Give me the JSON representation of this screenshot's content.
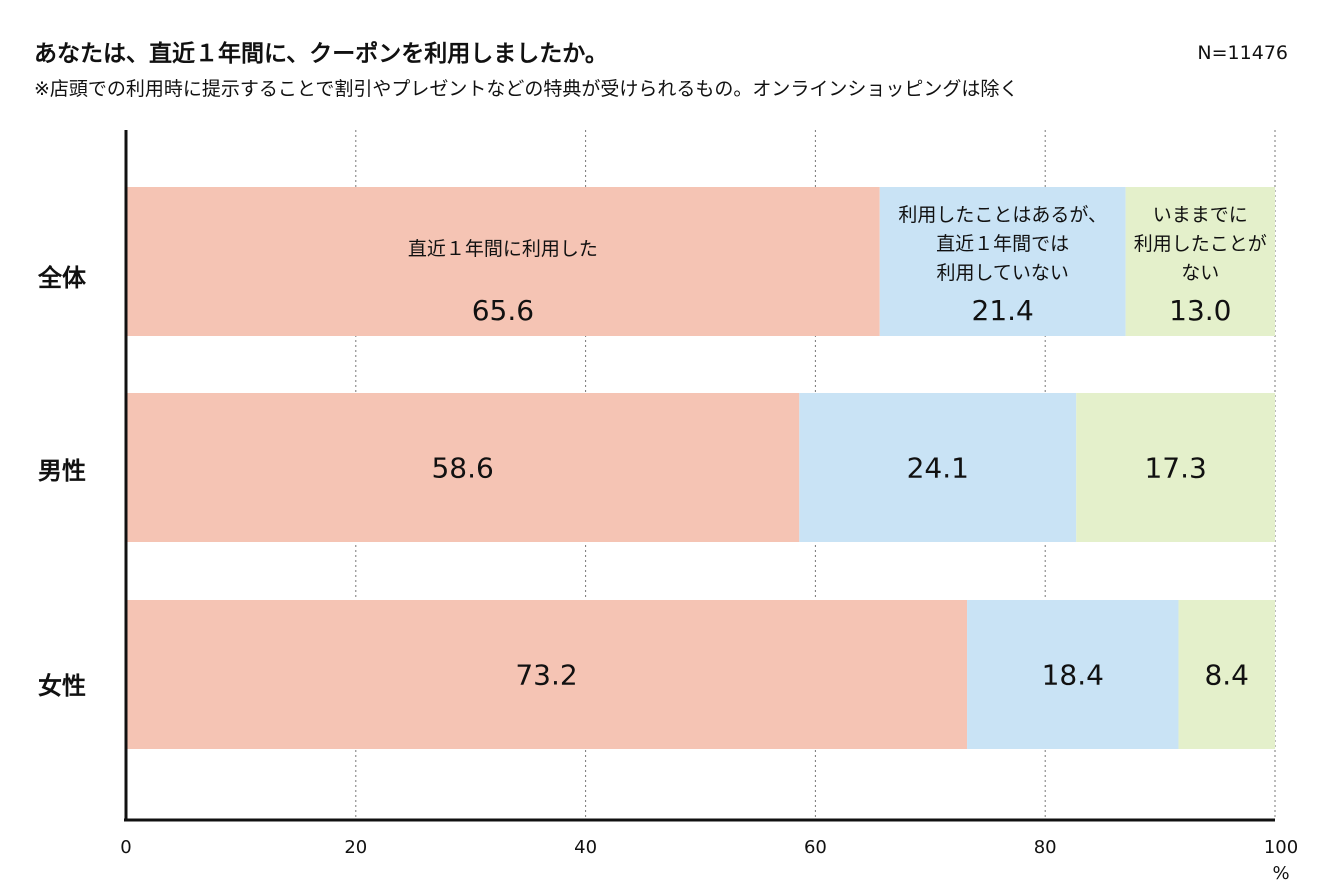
{
  "header": {
    "title": "あなたは、直近１年間に、クーポンを利用しましたか。",
    "subtitle": "※店頭での利用時に提示することで割引やプレゼントなどの特典が受けられるもの。オンラインショッピングは除く",
    "n_label": "N=11476"
  },
  "chart_data": {
    "type": "bar",
    "orientation": "horizontal",
    "stacked": true,
    "categories": [
      "全体",
      "男性",
      "女性"
    ],
    "series": [
      {
        "name": "直近１年間に利用した",
        "color": "#f5c4b4",
        "values": [
          65.6,
          58.6,
          73.2
        ]
      },
      {
        "name": "利用したことはあるが、直近１年間では利用していない",
        "color": "#c9e3f5",
        "values": [
          21.4,
          24.1,
          18.4
        ]
      },
      {
        "name": "いままでに利用したことがない",
        "color": "#e4f0cb",
        "values": [
          13.0,
          17.3,
          8.4
        ]
      }
    ],
    "inline_labels": [
      [
        "直近１年間に利用した"
      ],
      [
        "利用したことはあるが、",
        "直近１年間では",
        "利用していない"
      ],
      [
        "いままでに",
        "利用したことが",
        "ない"
      ]
    ],
    "value_labels": [
      [
        "65.6",
        "21.4",
        "13.0"
      ],
      [
        "58.6",
        "24.1",
        "17.3"
      ],
      [
        "73.2",
        "18.4",
        "8.4"
      ]
    ],
    "xlim": [
      0,
      100
    ],
    "xticks": [
      "0",
      "20",
      "40",
      "60",
      "80",
      "100"
    ],
    "x_unit": "%",
    "grid": true
  }
}
